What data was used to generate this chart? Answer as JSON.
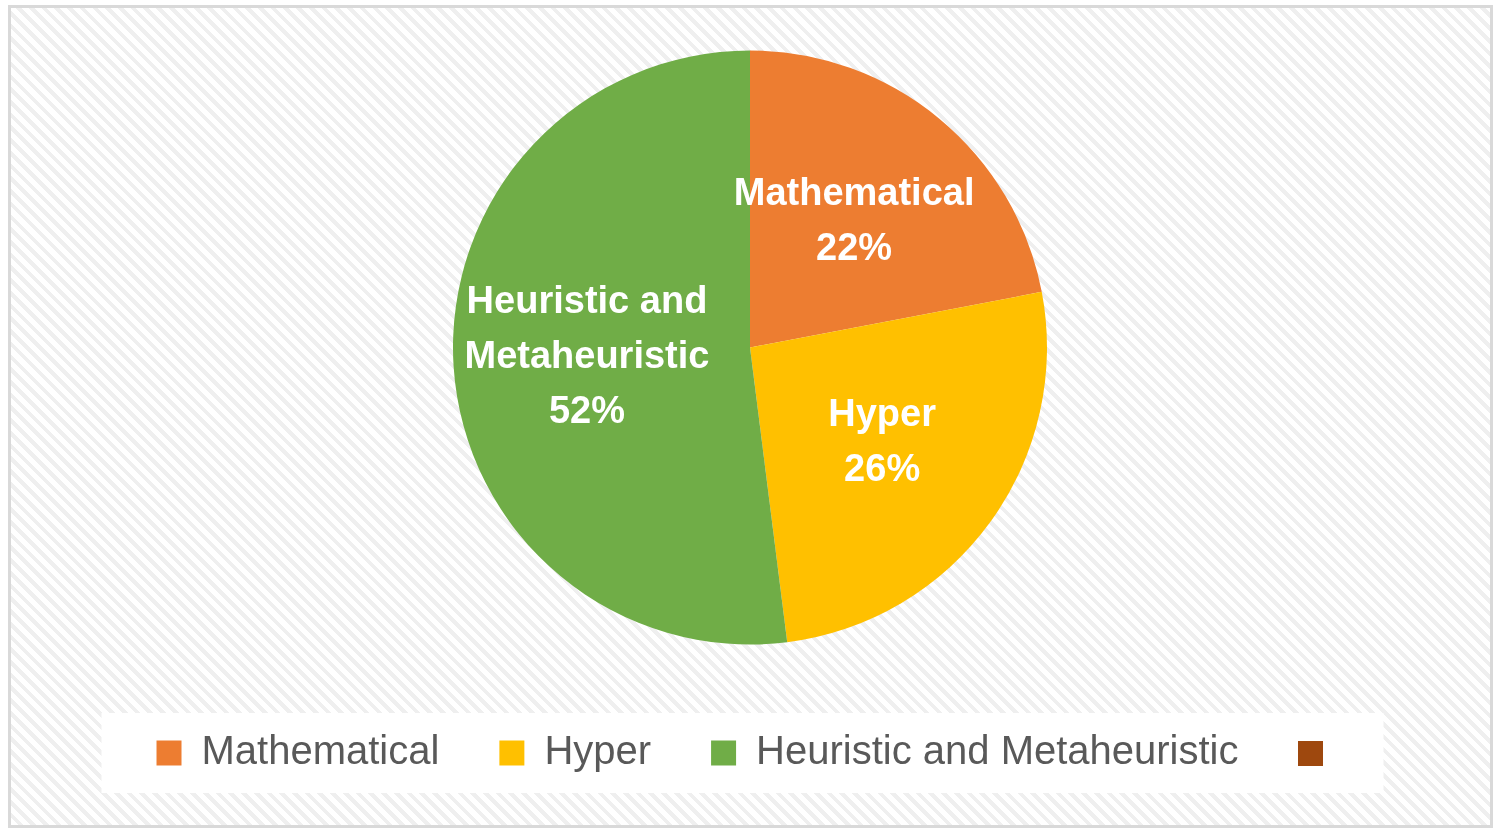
{
  "chart_data": {
    "type": "pie",
    "categories": [
      "Mathematical",
      "Hyper",
      "Heuristic and Metaheuristic",
      null
    ],
    "values": [
      22,
      26,
      52,
      0
    ],
    "colors": [
      "#ed7d31",
      "#ffc000",
      "#70ad47",
      "#9e480e"
    ],
    "value_labels": [
      "22%",
      "26%",
      "52%",
      null
    ],
    "legend": "bottom"
  }
}
